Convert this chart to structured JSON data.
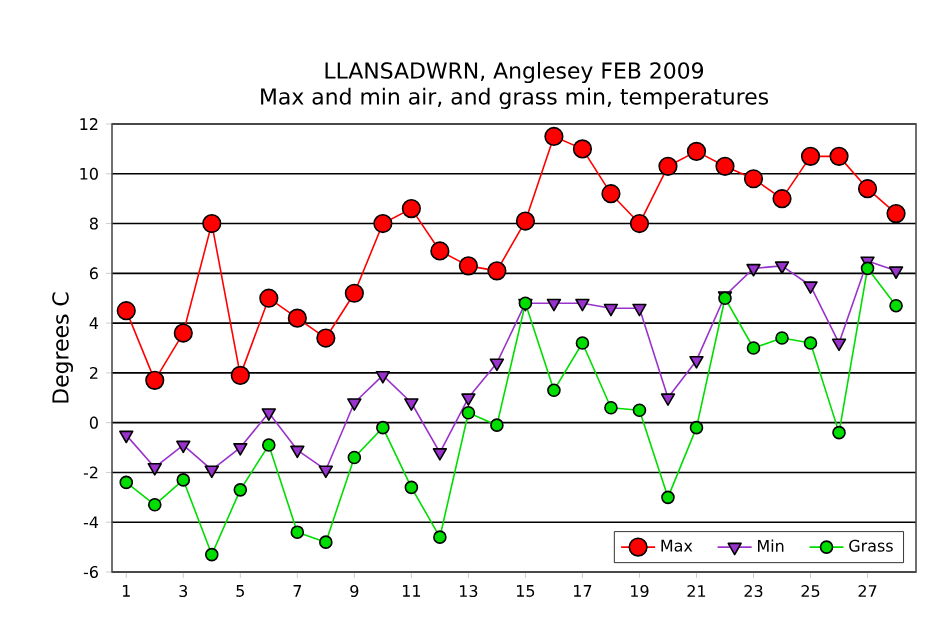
{
  "chart_data": {
    "type": "line",
    "title": "LLANSADWRN, Anglesey FEB 2009",
    "subtitle": "Max and min air, and grass min, temperatures",
    "ylabel": "Degrees C",
    "x": [
      1,
      2,
      3,
      4,
      5,
      6,
      7,
      8,
      9,
      10,
      11,
      12,
      13,
      14,
      15,
      16,
      17,
      18,
      19,
      20,
      21,
      22,
      23,
      24,
      25,
      26,
      27,
      28
    ],
    "xlim": [
      0.5,
      28.7
    ],
    "xticks": [
      1,
      3,
      5,
      7,
      9,
      11,
      13,
      15,
      17,
      19,
      21,
      23,
      25,
      27
    ],
    "ylim": [
      -6,
      12
    ],
    "yticks": [
      -6,
      -4,
      -2,
      0,
      2,
      4,
      6,
      8,
      10,
      12
    ],
    "grid": "y",
    "legend": "bottom right",
    "series": [
      {
        "name": "Max",
        "color": "#ff0000",
        "marker": "circle",
        "values": [
          4.5,
          1.7,
          3.6,
          8.0,
          1.9,
          5.0,
          4.2,
          3.4,
          5.2,
          8.0,
          8.6,
          6.9,
          6.3,
          6.1,
          8.1,
          11.5,
          11.0,
          9.2,
          8.0,
          10.3,
          10.9,
          10.3,
          9.8,
          9.0,
          10.7,
          10.7,
          9.4,
          8.4
        ]
      },
      {
        "name": "Min",
        "color": "#9933cc",
        "marker": "triangle",
        "values": [
          -0.5,
          -1.8,
          -0.9,
          -1.9,
          -1.0,
          0.4,
          -1.1,
          -1.9,
          0.8,
          1.9,
          0.8,
          -1.2,
          1.0,
          2.4,
          4.8,
          4.8,
          4.8,
          4.6,
          4.6,
          1.0,
          2.5,
          5.1,
          6.2,
          6.3,
          5.5,
          3.2,
          6.5,
          6.1
        ]
      },
      {
        "name": "Grass",
        "color": "#00dd00",
        "marker": "circle",
        "values": [
          -2.4,
          -3.3,
          -2.3,
          -5.3,
          -2.7,
          -0.9,
          -4.4,
          -4.8,
          -1.4,
          -0.2,
          -2.6,
          -4.6,
          0.4,
          -0.1,
          4.8,
          1.3,
          3.2,
          0.6,
          0.5,
          -3.0,
          -0.2,
          5.0,
          3.0,
          3.4,
          3.2,
          -0.4,
          6.2,
          4.7
        ]
      }
    ]
  }
}
